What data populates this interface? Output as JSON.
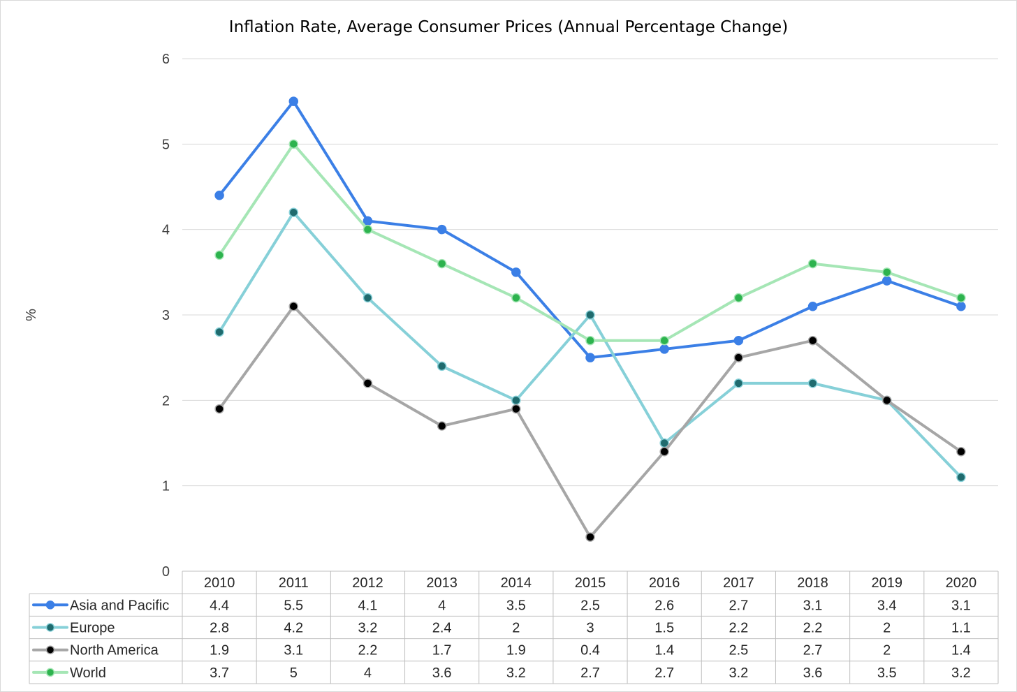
{
  "chart_data": {
    "type": "line",
    "title": "Inflation Rate, Average Consumer Prices (Annual Percentage Change)",
    "xlabel": "",
    "ylabel": "%",
    "ylim": [
      0,
      6
    ],
    "yticks": [
      "0",
      "1",
      "2",
      "3",
      "4",
      "5",
      "6"
    ],
    "grid": true,
    "legend": "data-table-left",
    "categories": [
      "2010",
      "2011",
      "2012",
      "2013",
      "2014",
      "2015",
      "2016",
      "2017",
      "2018",
      "2019",
      "2020"
    ],
    "series": [
      {
        "name": "Asia and Pacific",
        "color": "#3b7fe6",
        "marker": "#3b7fe6",
        "values": [
          4.4,
          5.5,
          4.1,
          4,
          3.5,
          2.5,
          2.6,
          2.7,
          3.1,
          3.4,
          3.1
        ],
        "labels": [
          "4.4",
          "5.5",
          "4.1",
          "4",
          "3.5",
          "2.5",
          "2.6",
          "2.7",
          "3.1",
          "3.4",
          "3.1"
        ]
      },
      {
        "name": "Europe",
        "color": "#86d0d8",
        "marker": "#1f6b6e",
        "values": [
          2.8,
          4.2,
          3.2,
          2.4,
          2,
          3,
          1.5,
          2.2,
          2.2,
          2,
          1.1
        ],
        "labels": [
          "2.8",
          "4.2",
          "3.2",
          "2.4",
          "2",
          "3",
          "1.5",
          "2.2",
          "2.2",
          "2",
          "1.1"
        ]
      },
      {
        "name": "North America",
        "color": "#a6a6a6",
        "marker": "#000000",
        "values": [
          1.9,
          3.1,
          2.2,
          1.7,
          1.9,
          0.4,
          1.4,
          2.5,
          2.7,
          2,
          1.4
        ],
        "labels": [
          "1.9",
          "3.1",
          "2.2",
          "1.7",
          "1.9",
          "0.4",
          "1.4",
          "2.5",
          "2.7",
          "2",
          "1.4"
        ]
      },
      {
        "name": "World",
        "color": "#a5e6b5",
        "marker": "#2db34e",
        "values": [
          3.7,
          5,
          4,
          3.6,
          3.2,
          2.7,
          2.7,
          3.2,
          3.6,
          3.5,
          3.2
        ],
        "labels": [
          "3.7",
          "5",
          "4",
          "3.6",
          "3.2",
          "2.7",
          "2.7",
          "3.2",
          "3.6",
          "3.5",
          "3.2"
        ]
      }
    ]
  }
}
